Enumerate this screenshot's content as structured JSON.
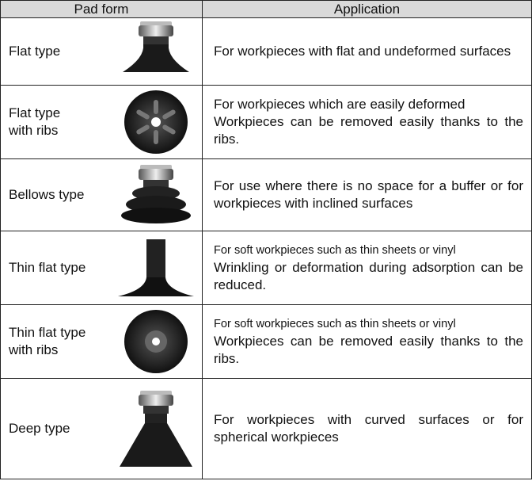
{
  "table": {
    "header": [
      "Pad form",
      "Application"
    ],
    "rows": [
      {
        "pad_form": [
          "Flat type"
        ],
        "application": [
          "For workpieces with flat and undeformed surfaces"
        ]
      },
      {
        "pad_form": [
          "Flat type",
          "with ribs"
        ],
        "application": [
          "For workpieces which are easily deformed",
          "Workpieces can be removed easily thanks to the ribs."
        ]
      },
      {
        "pad_form": [
          "Bellows type"
        ],
        "application": [
          "For use where there is no space for a buffer or for workpieces with inclined surfaces"
        ]
      },
      {
        "pad_form": [
          "Thin flat type"
        ],
        "application": [
          "For soft workpieces such as thin sheets or vinyl",
          "Wrinkling or deformation during adsorption can be reduced."
        ]
      },
      {
        "pad_form": [
          "Thin flat type",
          "with ribs"
        ],
        "application": [
          "For soft workpieces such as thin sheets or vinyl",
          "Workpieces can be removed easily thanks to the ribs."
        ]
      },
      {
        "pad_form": [
          "Deep type"
        ],
        "application": [
          "For workpieces with curved surfaces or for spherical workpieces"
        ]
      }
    ]
  }
}
